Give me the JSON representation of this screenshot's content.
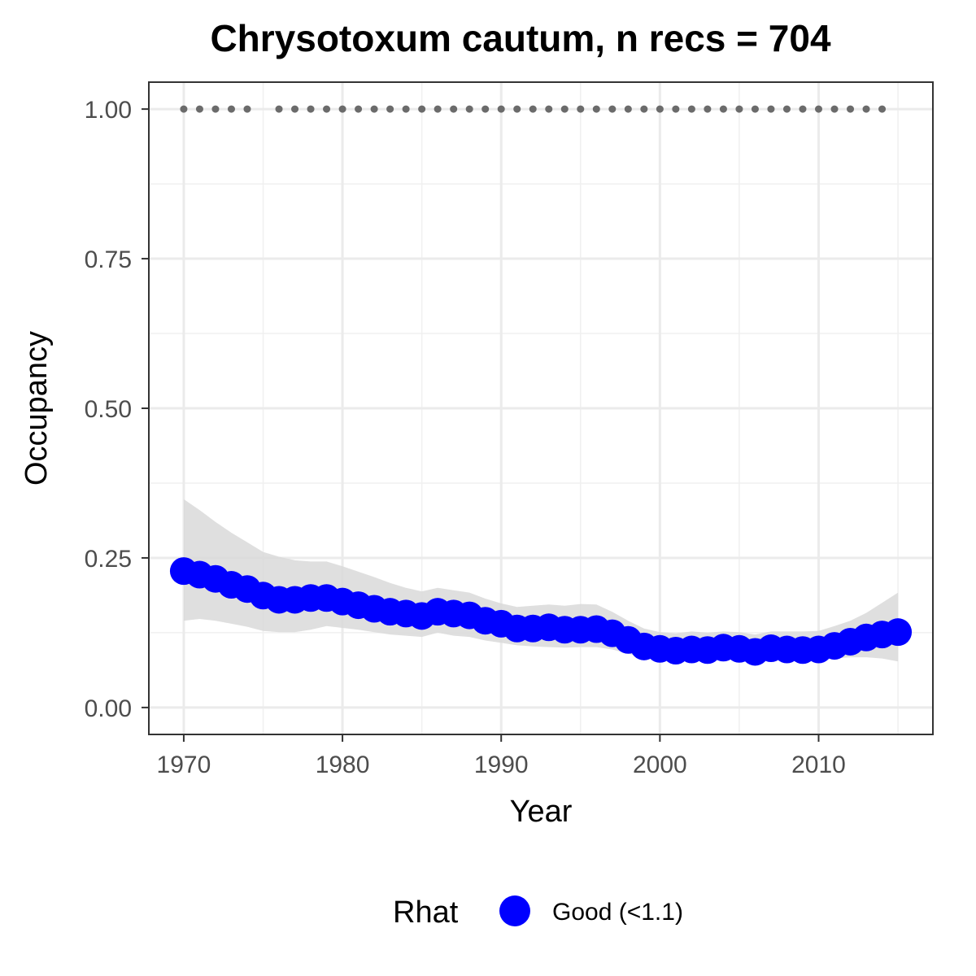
{
  "chart_data": {
    "type": "line",
    "title": "Chrysotoxum cautum, n recs = 704",
    "xlabel": "Year",
    "ylabel": "Occupancy",
    "xlim": [
      1967.8,
      2017.2
    ],
    "ylim": [
      -0.045,
      1.045
    ],
    "x_ticks": [
      1970,
      1980,
      1990,
      2000,
      2010
    ],
    "x_tick_labels": [
      "1970",
      "1980",
      "1990",
      "2000",
      "2010"
    ],
    "y_ticks": [
      0,
      0.25,
      0.5,
      0.75,
      1
    ],
    "y_tick_labels": [
      "0.00",
      "0.25",
      "0.50",
      "0.75",
      "1.00"
    ],
    "grid": true,
    "years": [
      1970,
      1971,
      1972,
      1973,
      1974,
      1975,
      1976,
      1977,
      1978,
      1979,
      1980,
      1981,
      1982,
      1983,
      1984,
      1985,
      1986,
      1987,
      1988,
      1989,
      1990,
      1991,
      1992,
      1993,
      1994,
      1995,
      1996,
      1997,
      1998,
      1999,
      2000,
      2001,
      2002,
      2003,
      2004,
      2005,
      2006,
      2007,
      2008,
      2009,
      2010,
      2011,
      2012,
      2013,
      2014,
      2015
    ],
    "mean": [
      0.228,
      0.222,
      0.215,
      0.205,
      0.198,
      0.187,
      0.18,
      0.18,
      0.183,
      0.183,
      0.177,
      0.171,
      0.165,
      0.16,
      0.157,
      0.153,
      0.16,
      0.157,
      0.154,
      0.145,
      0.14,
      0.132,
      0.132,
      0.134,
      0.13,
      0.13,
      0.131,
      0.124,
      0.113,
      0.102,
      0.098,
      0.095,
      0.097,
      0.096,
      0.1,
      0.098,
      0.093,
      0.099,
      0.097,
      0.096,
      0.097,
      0.103,
      0.11,
      0.117,
      0.122,
      0.126
    ],
    "lower": [
      0.145,
      0.148,
      0.145,
      0.14,
      0.135,
      0.128,
      0.126,
      0.126,
      0.13,
      0.136,
      0.133,
      0.13,
      0.126,
      0.122,
      0.12,
      0.118,
      0.125,
      0.12,
      0.118,
      0.112,
      0.108,
      0.104,
      0.102,
      0.101,
      0.1,
      0.101,
      0.101,
      0.097,
      0.09,
      0.084,
      0.081,
      0.079,
      0.079,
      0.079,
      0.08,
      0.08,
      0.078,
      0.08,
      0.08,
      0.08,
      0.08,
      0.082,
      0.084,
      0.084,
      0.082,
      0.077
    ],
    "upper": [
      0.348,
      0.33,
      0.31,
      0.292,
      0.276,
      0.26,
      0.252,
      0.246,
      0.244,
      0.244,
      0.236,
      0.227,
      0.218,
      0.208,
      0.2,
      0.194,
      0.2,
      0.196,
      0.192,
      0.182,
      0.174,
      0.168,
      0.17,
      0.172,
      0.17,
      0.173,
      0.172,
      0.16,
      0.145,
      0.132,
      0.126,
      0.124,
      0.127,
      0.125,
      0.127,
      0.126,
      0.122,
      0.127,
      0.127,
      0.127,
      0.128,
      0.136,
      0.145,
      0.158,
      0.175,
      0.192
    ],
    "record_years": [
      1970,
      1971,
      1972,
      1973,
      1974,
      1976,
      1977,
      1978,
      1979,
      1980,
      1981,
      1982,
      1983,
      1984,
      1985,
      1986,
      1987,
      1988,
      1989,
      1990,
      1991,
      1992,
      1993,
      1994,
      1995,
      1996,
      1997,
      1998,
      1999,
      2000,
      2001,
      2002,
      2003,
      2004,
      2005,
      2006,
      2007,
      2008,
      2009,
      2010,
      2011,
      2012,
      2013,
      2014
    ],
    "record_value": 1.0,
    "series": [
      {
        "name": "Good (<1.1)",
        "color": "#0000ff"
      }
    ],
    "ribbon_color": "#d9d9d9",
    "record_marker_color": "#6b6b6b",
    "legend": {
      "title": "Rhat",
      "position": "bottom",
      "entries": [
        "Good (<1.1)"
      ]
    }
  }
}
